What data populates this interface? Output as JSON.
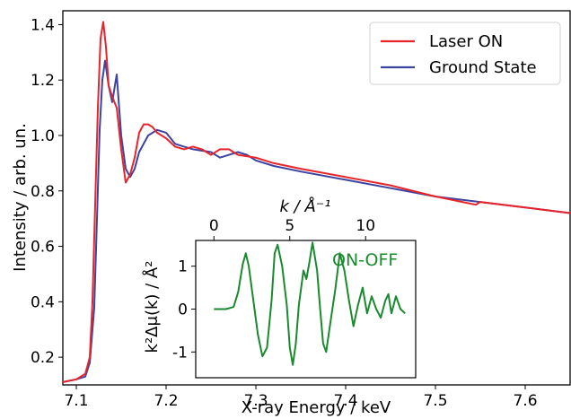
{
  "chart_data": [
    {
      "type": "line",
      "title": "",
      "xlabel": "X-ray Energy / keV",
      "ylabel": "Intensity / arb. un.",
      "xlim": [
        7.085,
        7.65
      ],
      "ylim": [
        0.1,
        1.45
      ],
      "x_ticks": [
        "7.1",
        "7.2",
        "7.3",
        "7.4",
        "7.5",
        "7.6"
      ],
      "y_ticks": [
        "0.2",
        "0.4",
        "0.6",
        "0.8",
        "1.0",
        "1.2",
        "1.4"
      ],
      "legend": {
        "placement": "top-right",
        "entries": [
          "Laser ON",
          "Ground State"
        ]
      },
      "series": [
        {
          "name": "Laser ON",
          "color": "#e8242b",
          "x": [
            7.085,
            7.1,
            7.11,
            7.115,
            7.118,
            7.121,
            7.124,
            7.127,
            7.13,
            7.133,
            7.136,
            7.14,
            7.145,
            7.15,
            7.155,
            7.16,
            7.165,
            7.17,
            7.175,
            7.18,
            7.185,
            7.19,
            7.2,
            7.21,
            7.22,
            7.23,
            7.24,
            7.25,
            7.26,
            7.27,
            7.28,
            7.3,
            7.32,
            7.35,
            7.4,
            7.45,
            7.5,
            7.545,
            7.55,
            7.6,
            7.65
          ],
          "y": [
            0.11,
            0.12,
            0.14,
            0.2,
            0.4,
            0.75,
            1.1,
            1.35,
            1.41,
            1.32,
            1.18,
            1.14,
            1.1,
            0.95,
            0.83,
            0.86,
            0.92,
            1.01,
            1.04,
            1.04,
            1.03,
            1.01,
            0.99,
            0.96,
            0.95,
            0.96,
            0.95,
            0.93,
            0.95,
            0.95,
            0.93,
            0.92,
            0.9,
            0.88,
            0.85,
            0.82,
            0.78,
            0.75,
            0.76,
            0.74,
            0.72
          ]
        },
        {
          "name": "Ground State",
          "color": "#3b44a0",
          "x": [
            7.085,
            7.1,
            7.11,
            7.115,
            7.12,
            7.123,
            7.126,
            7.129,
            7.132,
            7.136,
            7.14,
            7.145,
            7.15,
            7.155,
            7.16,
            7.165,
            7.17,
            7.18,
            7.19,
            7.2,
            7.21,
            7.22,
            7.23,
            7.25,
            7.26,
            7.27,
            7.28,
            7.29,
            7.3,
            7.32,
            7.35,
            7.4,
            7.45,
            7.5,
            7.6,
            7.65
          ],
          "y": [
            0.11,
            0.12,
            0.13,
            0.18,
            0.38,
            0.7,
            1.02,
            1.2,
            1.27,
            1.18,
            1.12,
            1.22,
            1.0,
            0.88,
            0.85,
            0.88,
            0.94,
            1.0,
            1.02,
            1.01,
            0.97,
            0.96,
            0.95,
            0.94,
            0.92,
            0.93,
            0.94,
            0.93,
            0.91,
            0.89,
            0.87,
            0.84,
            0.81,
            0.78,
            0.74,
            0.72
          ]
        }
      ]
    },
    {
      "type": "line",
      "title": "",
      "xlabel": "k / Å⁻¹",
      "ylabel": "k²Δμ(k) / Å²",
      "x_axis_position": "top",
      "xlim": [
        -1.2,
        13.3
      ],
      "ylim": [
        -1.6,
        1.6
      ],
      "x_ticks": [
        "0",
        "5",
        "10"
      ],
      "y_ticks": [
        "-1",
        "0",
        "1"
      ],
      "annotation": "ON-OFF",
      "series": [
        {
          "color": "#1a8a2e",
          "x": [
            0.0,
            0.8,
            1.3,
            1.6,
            1.9,
            2.1,
            2.3,
            2.6,
            2.9,
            3.2,
            3.5,
            3.8,
            4.0,
            4.2,
            4.5,
            4.8,
            5.0,
            5.2,
            5.4,
            5.6,
            5.9,
            6.1,
            6.3,
            6.5,
            6.8,
            7.0,
            7.2,
            7.4,
            7.6,
            8.0,
            8.3,
            8.6,
            8.9,
            9.2,
            9.5,
            9.8,
            10.1,
            10.4,
            10.7,
            11.0,
            11.3,
            11.5,
            11.7,
            12.0,
            12.3,
            12.6
          ],
          "y": [
            0.0,
            0.0,
            0.05,
            0.4,
            1.05,
            1.3,
            1.0,
            0.2,
            -0.6,
            -1.1,
            -0.9,
            0.2,
            1.3,
            1.5,
            1.0,
            0.1,
            -0.9,
            -1.3,
            -0.8,
            0.1,
            0.9,
            0.7,
            1.1,
            1.55,
            0.9,
            0.0,
            -0.8,
            -1.0,
            -0.5,
            0.45,
            1.3,
            0.9,
            0.2,
            -0.4,
            0.1,
            0.5,
            -0.1,
            0.3,
            0.0,
            -0.2,
            0.2,
            0.35,
            -0.1,
            0.3,
            0.0,
            -0.1
          ]
        }
      ]
    }
  ]
}
